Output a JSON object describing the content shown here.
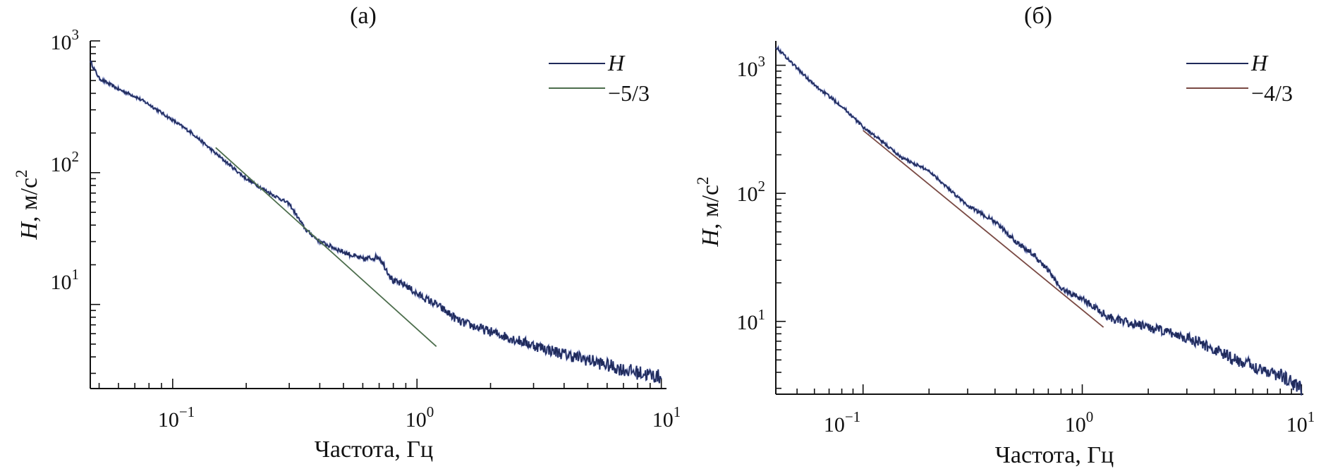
{
  "chart_data": [
    {
      "type": "line",
      "panel_label": "(а)",
      "xlabel": "Частота, Гц",
      "ylabel_main": "H",
      "ylabel_unit": ", м/с",
      "ylabel_sup": "2",
      "x_scale": "log",
      "y_scale": "log",
      "xlim": [
        0.046,
        10.5
      ],
      "ylim": [
        2.3,
        1000
      ],
      "x_ticks": [
        {
          "base": "10",
          "exp": "−1",
          "value": 0.1
        },
        {
          "base": "10",
          "exp": "0",
          "value": 1
        },
        {
          "base": "10",
          "exp": "1",
          "value": 10
        }
      ],
      "y_ticks": [
        {
          "base": "10",
          "exp": "1",
          "value": 10
        },
        {
          "base": "10",
          "exp": "2",
          "value": 100
        },
        {
          "base": "10",
          "exp": "3",
          "value": 1000
        }
      ],
      "legend_position": "top-right",
      "series": [
        {
          "name": "H",
          "color": "#1f2a5a",
          "style": "noisy",
          "x": [
            0.046,
            0.05,
            0.06,
            0.07,
            0.08,
            0.1,
            0.12,
            0.15,
            0.2,
            0.25,
            0.3,
            0.35,
            0.4,
            0.5,
            0.6,
            0.7,
            0.8,
            0.9,
            1.0,
            1.2,
            1.5,
            2.0,
            3.0,
            4.0,
            5.0,
            7.0,
            10.0
          ],
          "y": [
            700,
            520,
            430,
            380,
            330,
            250,
            200,
            140,
            90,
            70,
            58,
            37,
            30,
            25,
            22,
            23,
            15,
            14,
            12,
            10,
            7.4,
            6.2,
            4.9,
            4.2,
            3.8,
            3.2,
            2.8
          ]
        },
        {
          "name": "−5/3",
          "color": "#4d6e4d",
          "style": "straight",
          "x": [
            0.15,
            1.2
          ],
          "y": [
            155,
            4.8
          ]
        }
      ]
    },
    {
      "type": "line",
      "panel_label": "(б)",
      "xlabel": "Частота, Гц",
      "ylabel_main": "H",
      "ylabel_unit": ", м/с",
      "ylabel_sup": "2",
      "x_scale": "log",
      "y_scale": "log",
      "xlim": [
        0.04,
        10.2
      ],
      "ylim": [
        2.7,
        1550
      ],
      "x_ticks": [
        {
          "base": "10",
          "exp": "−1",
          "value": 0.1
        },
        {
          "base": "10",
          "exp": "0",
          "value": 1
        },
        {
          "base": "10",
          "exp": "1",
          "value": 10
        }
      ],
      "y_ticks": [
        {
          "base": "10",
          "exp": "1",
          "value": 10
        },
        {
          "base": "10",
          "exp": "2",
          "value": 100
        },
        {
          "base": "10",
          "exp": "3",
          "value": 1000
        }
      ],
      "legend_position": "top-right",
      "series": [
        {
          "name": "H",
          "color": "#1f2a5a",
          "style": "noisy",
          "x": [
            0.04,
            0.05,
            0.06,
            0.08,
            0.1,
            0.12,
            0.15,
            0.2,
            0.3,
            0.4,
            0.5,
            0.6,
            0.7,
            0.8,
            1.0,
            1.3,
            1.5,
            2.0,
            3.0,
            4.0,
            4.5,
            4.7,
            5.0,
            6.0,
            8.0,
            10.0
          ],
          "y": [
            1400,
            950,
            700,
            480,
            330,
            260,
            190,
            150,
            80,
            60,
            42,
            33,
            25,
            18,
            15,
            11,
            10,
            9,
            7.5,
            6,
            5.5,
            5.2,
            5.0,
            4.5,
            3.8,
            3.0
          ]
        },
        {
          "name": "−4/3",
          "color": "#7a4a44",
          "style": "straight",
          "x": [
            0.1,
            1.25
          ],
          "y": [
            310,
            9
          ]
        }
      ]
    }
  ]
}
